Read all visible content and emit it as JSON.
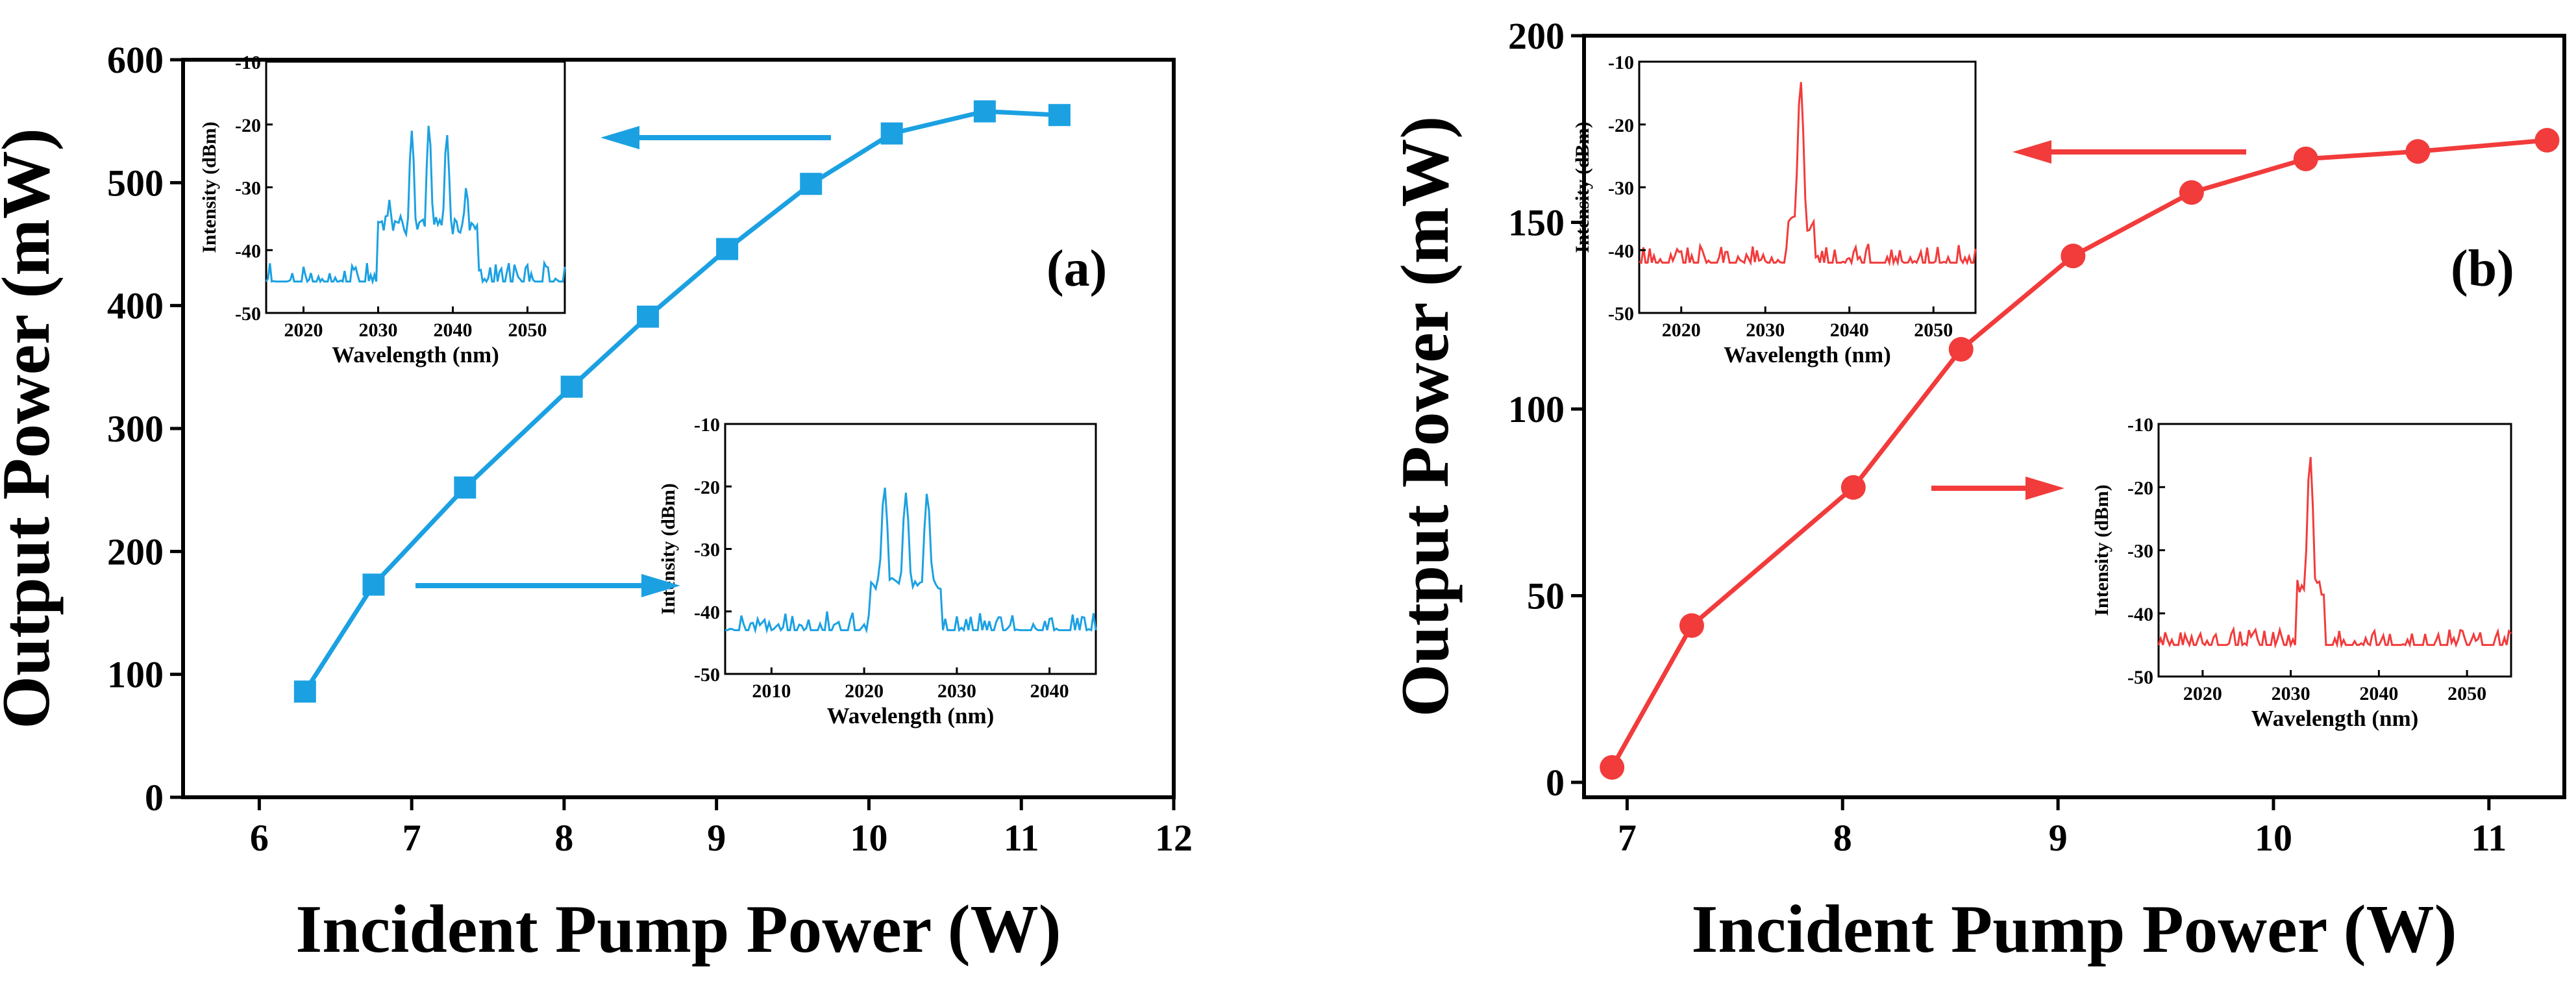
{
  "colors": {
    "panel_a": "#1ba1e2",
    "panel_b": "#f23b3b",
    "axis": "#000000",
    "background": "#ffffff"
  },
  "chart_data": [
    {
      "id": "a",
      "type": "line",
      "panel_label": "(a)",
      "title": "",
      "xlabel": "Incident Pump Power (W)",
      "ylabel": "Output Power (mW)",
      "xlim": [
        5.5,
        12
      ],
      "ylim": [
        0,
        600
      ],
      "xticks": [
        6,
        7,
        8,
        9,
        10,
        11,
        12
      ],
      "yticks": [
        0,
        100,
        200,
        300,
        400,
        500,
        600
      ],
      "marker": "square",
      "grid": false,
      "series": [
        {
          "name": "Output power",
          "x": [
            6.3,
            6.75,
            7.35,
            8.05,
            8.55,
            9.07,
            9.62,
            10.15,
            10.76,
            11.25
          ],
          "y": [
            86,
            173,
            252,
            334,
            391,
            446,
            499,
            540,
            558,
            555
          ]
        }
      ],
      "insets": [
        {
          "type": "line",
          "xlabel": "Wavelength (nm)",
          "ylabel": "Intensity (dBm)",
          "xlim": [
            2015,
            2055
          ],
          "ylim": [
            -50,
            -10
          ],
          "xticks": [
            2020,
            2030,
            2040,
            2050
          ],
          "yticks": [
            -10,
            -20,
            -30,
            -40,
            -50
          ],
          "annotation": "arrow pointing left from the 10.15 W data point",
          "noise_floor_dbm": -45,
          "noise_amplitude_db": 6,
          "noise_samples": 160,
          "peaks": [
            [
              2031.5,
              -32
            ],
            [
              2034.5,
              -21
            ],
            [
              2036.8,
              -20
            ],
            [
              2039.2,
              -21.5
            ],
            [
              2041.8,
              -30
            ]
          ]
        },
        {
          "type": "line",
          "xlabel": "Wavelength (nm)",
          "ylabel": "Intensity (dBm)",
          "xlim": [
            2005,
            2045
          ],
          "ylim": [
            -50,
            -10
          ],
          "xticks": [
            2010,
            2020,
            2030,
            2040
          ],
          "yticks": [
            -10,
            -20,
            -30,
            -40,
            -50
          ],
          "annotation": "arrow pointing right from the 6.75 W data point",
          "noise_floor_dbm": -43,
          "noise_amplitude_db": 6,
          "noise_samples": 160,
          "peaks": [
            [
              2022.2,
              -20
            ],
            [
              2024.5,
              -21
            ],
            [
              2026.8,
              -21
            ]
          ]
        }
      ]
    },
    {
      "id": "b",
      "type": "line",
      "panel_label": "(b)",
      "title": "",
      "xlabel": "Incident Pump Power (W)",
      "ylabel": "Output Power (mW)",
      "xlim": [
        6.8,
        11.35
      ],
      "ylim": [
        -4,
        200
      ],
      "xticks": [
        7,
        8,
        9,
        10,
        11
      ],
      "yticks": [
        0,
        50,
        100,
        150,
        200
      ],
      "marker": "circle",
      "grid": false,
      "series": [
        {
          "name": "Output power",
          "x": [
            6.93,
            7.3,
            8.05,
            8.55,
            9.07,
            9.62,
            10.15,
            10.67,
            11.27
          ],
          "y": [
            4,
            42,
            79,
            116,
            141,
            158,
            167,
            169,
            172
          ]
        }
      ],
      "insets": [
        {
          "type": "line",
          "xlabel": "Wavelength (nm)",
          "ylabel": "Intensity (dBm)",
          "xlim": [
            2015,
            2055
          ],
          "ylim": [
            -50,
            -10
          ],
          "xticks": [
            2020,
            2030,
            2040,
            2050
          ],
          "yticks": [
            -10,
            -20,
            -30,
            -40,
            -50
          ],
          "annotation": "arrow pointing left from the 10.15 W data point",
          "noise_floor_dbm": -42,
          "noise_amplitude_db": 6,
          "noise_samples": 160,
          "peaks": [
            [
              2034.2,
              -13
            ]
          ]
        },
        {
          "type": "line",
          "xlabel": "Wavelength (nm)",
          "ylabel": "Intensity (dBm)",
          "xlim": [
            2015,
            2055
          ],
          "ylim": [
            -50,
            -10
          ],
          "xticks": [
            2020,
            2030,
            2040,
            2050
          ],
          "yticks": [
            -10,
            -20,
            -30,
            -40,
            -50
          ],
          "annotation": "arrow pointing right from the 8.05 W data point",
          "noise_floor_dbm": -45,
          "noise_amplitude_db": 5,
          "noise_samples": 160,
          "peaks": [
            [
              2032.2,
              -15
            ]
          ]
        }
      ]
    }
  ]
}
